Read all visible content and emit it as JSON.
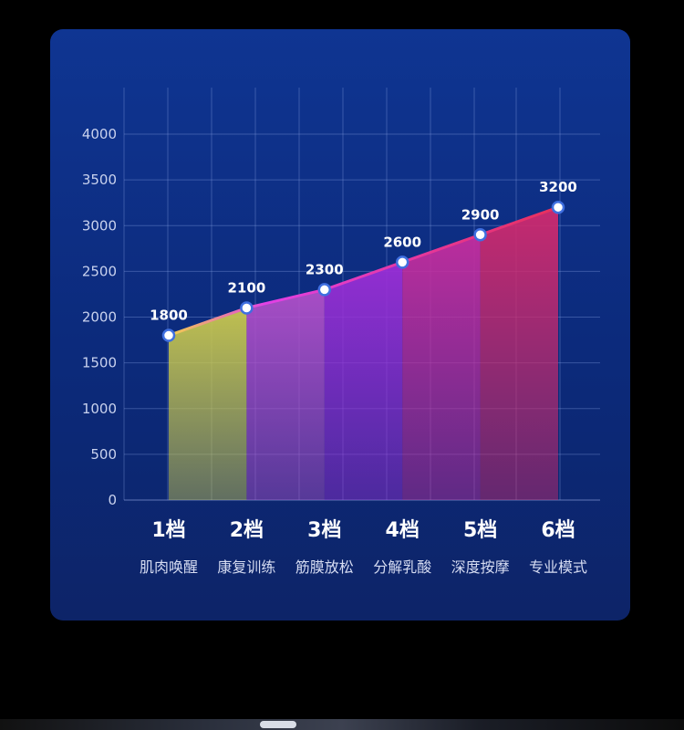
{
  "chart_data": {
    "type": "area",
    "categories": [
      "1档",
      "2档",
      "3档",
      "4档",
      "5档",
      "6档"
    ],
    "subcategories": [
      "肌肉唤醒",
      "康复训练",
      "筋膜放松",
      "分解乳酸",
      "深度按摩",
      "专业模式"
    ],
    "values": [
      1800,
      2100,
      2300,
      2600,
      2900,
      3200
    ],
    "data_labels": [
      "1800",
      "2100",
      "2300",
      "2600",
      "2900",
      "3200"
    ],
    "y_ticks": [
      "0",
      "500",
      "1000",
      "1500",
      "2000",
      "2500",
      "3000",
      "3500",
      "4000"
    ],
    "ylim": [
      0,
      4000
    ],
    "grid": true,
    "segment_colors": [
      "#c9c84e",
      "#b04fc9",
      "#9a2ed6",
      "#c42d9e",
      "#cf2a6e",
      "#d82b55"
    ],
    "line_color": "#e33be0",
    "marker_color": "#ffffff"
  }
}
